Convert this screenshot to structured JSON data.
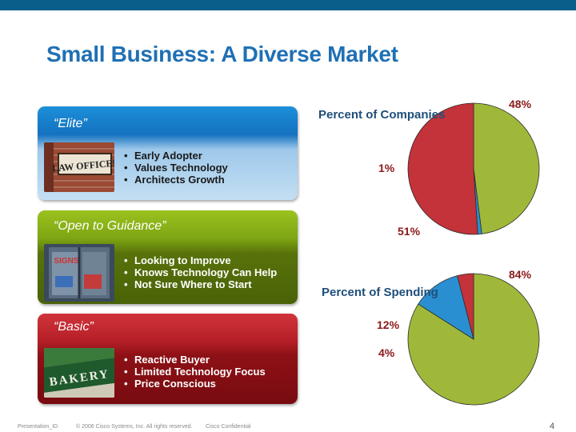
{
  "title": "Small Business: A Diverse Market",
  "segments": [
    {
      "title": "“Elite”",
      "photo_sign": "LAW OFFICES",
      "bullets": [
        "Early Adopter",
        "Values Technology",
        "Architects Growth"
      ]
    },
    {
      "title": "“Open to Guidance”",
      "photo_sign": "SIGNS",
      "bullets": [
        "Looking to Improve",
        "Knows Technology Can Help",
        "Not Sure Where to Start"
      ]
    },
    {
      "title": "“Basic”",
      "photo_sign": "BAKERY",
      "bullets": [
        "Reactive Buyer",
        "Limited Technology Focus",
        "Price Conscious"
      ]
    }
  ],
  "chart_data": [
    {
      "type": "pie",
      "title": "Percent of Companies",
      "categories": [
        "“Elite”",
        "“Open to Guidance”",
        "“Basic”"
      ],
      "values": [
        1,
        48,
        51
      ],
      "labels": [
        "1%",
        "48%",
        "51%"
      ],
      "colors": [
        "#2a8fd0",
        "#9fb83a",
        "#c4323a"
      ]
    },
    {
      "type": "pie",
      "title": "Percent of Spending",
      "categories": [
        "“Elite”",
        "“Open to Guidance”",
        "“Basic”"
      ],
      "values": [
        12,
        84,
        4
      ],
      "labels": [
        "12%",
        "84%",
        "4%"
      ],
      "colors": [
        "#2a8fd0",
        "#9fb83a",
        "#c4323a"
      ]
    }
  ],
  "footer": {
    "left": "Presentation_ID",
    "copyright": "© 2006 Cisco Systems, Inc. All rights reserved.",
    "confidential": "Cisco Confidential",
    "page": "4"
  }
}
